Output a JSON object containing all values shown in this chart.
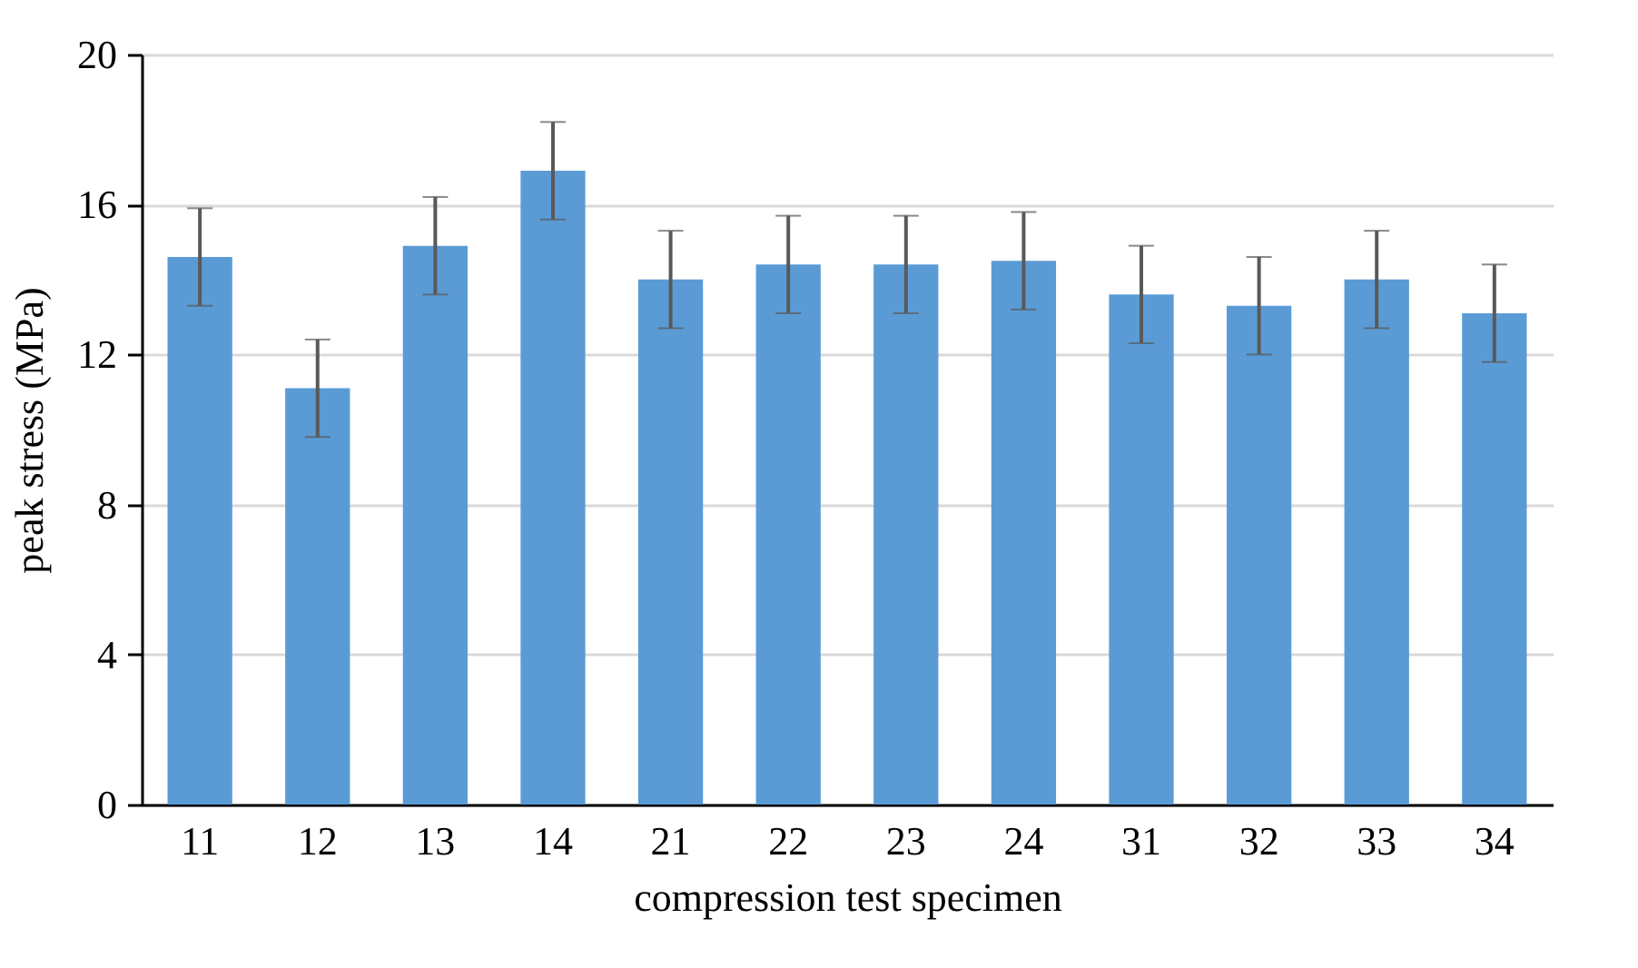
{
  "chart_data": {
    "type": "bar",
    "xlabel": "compression test specimen",
    "ylabel": "peak stress (MPa)",
    "categories": [
      "11",
      "12",
      "13",
      "14",
      "21",
      "22",
      "23",
      "24",
      "31",
      "32",
      "33",
      "34"
    ],
    "values": [
      14.6,
      11.1,
      14.9,
      16.9,
      14.0,
      14.4,
      14.4,
      14.5,
      13.6,
      13.3,
      14.0,
      13.1
    ],
    "errors": [
      1.3,
      1.3,
      1.3,
      1.3,
      1.3,
      1.3,
      1.3,
      1.3,
      1.3,
      1.3,
      1.3,
      1.3
    ],
    "color": "#5b9bd5",
    "ylim": [
      0,
      20
    ],
    "yticks": [
      0,
      4,
      8,
      12,
      16,
      20
    ],
    "grid": "y"
  }
}
